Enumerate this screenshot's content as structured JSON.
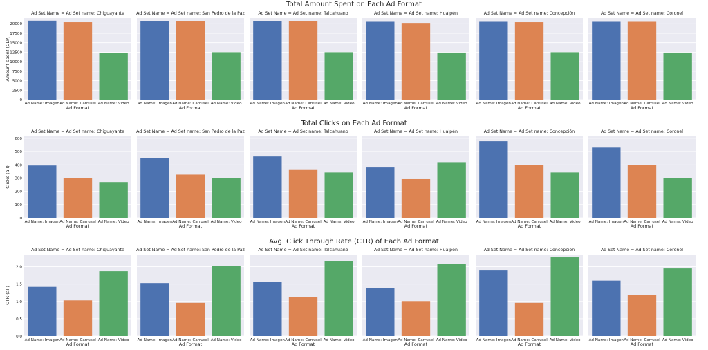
{
  "chart_data": [
    {
      "type": "bar",
      "title": "Total Amount Spent on Each Ad Format",
      "ylabel": "Amount spent (CLP)",
      "xlabel": "Ad Format",
      "ylim": [
        0,
        21500
      ],
      "yticks": [
        0,
        2500,
        5000,
        7500,
        10000,
        12500,
        15000,
        17500,
        20000
      ],
      "ytick_labels": [
        "0",
        "2500",
        "5000",
        "7500",
        "10000",
        "12500",
        "15000",
        "17500",
        "20000"
      ],
      "categories": [
        "Ad Name: Imagen",
        "Ad Name: Carrusel",
        "Ad Name: Video"
      ],
      "colors": [
        "#4c72b0",
        "#dd8452",
        "#55a868"
      ],
      "grid": true,
      "facets": [
        {
          "title": "Ad Set Name = Ad Set name: Chiguayante",
          "values": [
            20800,
            20400,
            12300
          ]
        },
        {
          "title": "Ad Set Name = Ad Set name: San Pedro de la Paz",
          "values": [
            20700,
            20600,
            12500
          ]
        },
        {
          "title": "Ad Set Name = Ad Set name: Talcahuano",
          "values": [
            20700,
            20600,
            12500
          ]
        },
        {
          "title": "Ad Set Name = Ad Set name: Hualpén",
          "values": [
            20500,
            20200,
            12400
          ]
        },
        {
          "title": "Ad Set Name = Ad Set name: Concepción",
          "values": [
            20500,
            20400,
            12500
          ]
        },
        {
          "title": "Ad Set Name = Ad Set name: Coronel",
          "values": [
            20500,
            20500,
            12400
          ]
        }
      ]
    },
    {
      "type": "bar",
      "title": "Total Clicks on Each Ad Format",
      "ylabel": "Clicks (all)",
      "xlabel": "Ad Format",
      "ylim": [
        0,
        615
      ],
      "yticks": [
        0,
        100,
        200,
        300,
        400,
        500,
        600
      ],
      "ytick_labels": [
        "0",
        "100",
        "200",
        "300",
        "400",
        "500",
        "600"
      ],
      "categories": [
        "Ad Name: Imagen",
        "Ad Name: Carrusel",
        "Ad Name: Video"
      ],
      "colors": [
        "#4c72b0",
        "#dd8452",
        "#55a868"
      ],
      "grid": true,
      "facets": [
        {
          "title": "Ad Set Name = Ad Set name: Chiguayante",
          "values": [
            395,
            302,
            270
          ]
        },
        {
          "title": "Ad Set Name = Ad Set name: San Pedro de la Paz",
          "values": [
            450,
            326,
            302
          ]
        },
        {
          "title": "Ad Set Name = Ad Set name: Talcahuano",
          "values": [
            463,
            361,
            342
          ]
        },
        {
          "title": "Ad Set Name = Ad Set name: Hualpén",
          "values": [
            380,
            292,
            420
          ]
        },
        {
          "title": "Ad Set Name = Ad Set name: Concepción",
          "values": [
            578,
            400,
            342
          ]
        },
        {
          "title": "Ad Set Name = Ad Set name: Coronel",
          "values": [
            530,
            400,
            300
          ]
        }
      ]
    },
    {
      "type": "bar",
      "title": "Avg. Click Through Rate (CTR) of Each Ad Format",
      "ylabel": "CTR (all)",
      "xlabel": "Ad Format",
      "ylim": [
        0,
        2.35
      ],
      "yticks": [
        0,
        0.5,
        1.0,
        1.5,
        2.0
      ],
      "ytick_labels": [
        "0.0",
        "0.5",
        "1.0",
        "1.5",
        "2.0"
      ],
      "categories": [
        "Ad Name: Imagen",
        "Ad Name: Carrusel",
        "Ad Name: Video"
      ],
      "colors": [
        "#4c72b0",
        "#dd8452",
        "#55a868"
      ],
      "grid": true,
      "facets": [
        {
          "title": "Ad Set Name = Ad Set name: Chiguayante",
          "values": [
            1.42,
            1.03,
            1.87
          ]
        },
        {
          "title": "Ad Set Name = Ad Set name: San Pedro de la Paz",
          "values": [
            1.53,
            0.96,
            2.02
          ]
        },
        {
          "title": "Ad Set Name = Ad Set name: Talcahuano",
          "values": [
            1.56,
            1.12,
            2.16
          ]
        },
        {
          "title": "Ad Set Name = Ad Set name: Hualpén",
          "values": [
            1.38,
            1.01,
            2.08
          ]
        },
        {
          "title": "Ad Set Name = Ad Set name: Concepción",
          "values": [
            1.89,
            0.96,
            2.27
          ]
        },
        {
          "title": "Ad Set Name = Ad Set name: Coronel",
          "values": [
            1.6,
            1.18,
            1.95
          ]
        }
      ]
    }
  ]
}
